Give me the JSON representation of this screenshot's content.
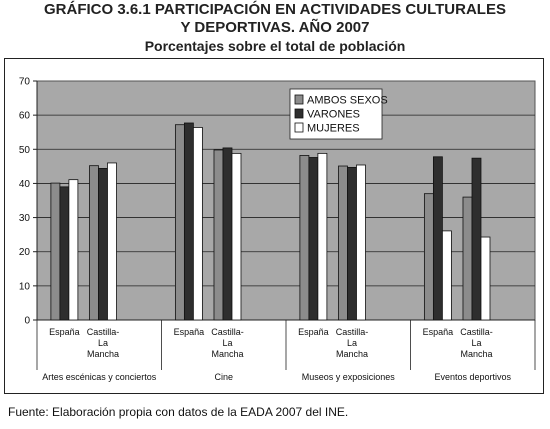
{
  "header": {
    "title_line1": "GRÁFICO 3.6.1 PARTICIPACIÓN EN ACTIVIDADES CULTURALES",
    "title_line2": "Y DEPORTIVAS. AÑO 2007",
    "subtitle": "Porcentajes sobre el total de población"
  },
  "footer": {
    "source": "Fuente: Elaboración propia con datos de la EADA 2007 del INE."
  },
  "colors": {
    "plot_background": "#a8a8a8",
    "ambos": "#8c8c8c",
    "varones": "#2e2e2e",
    "mujeres": "#ffffff"
  },
  "chart_data": {
    "type": "bar",
    "title": "GRÁFICO 3.6.1 PARTICIPACIÓN EN ACTIVIDADES CULTURALES Y DEPORTIVAS. AÑO 2007",
    "subtitle": "Porcentajes sobre el total de población",
    "ylim": [
      0,
      70
    ],
    "yticks": [
      0,
      10,
      20,
      30,
      40,
      50,
      60,
      70
    ],
    "grid": true,
    "legend_position": "top-right",
    "groups": [
      {
        "label": "Artes escénicas y conciertos",
        "categories": [
          "España",
          "Castilla-La Mancha"
        ]
      },
      {
        "label": "Cine",
        "categories": [
          "España",
          "Castilla-La Mancha"
        ]
      },
      {
        "label": "Museos y exposiciones",
        "categories": [
          "España",
          "Castilla-La Mancha"
        ]
      },
      {
        "label": "Eventos deportivos",
        "categories": [
          "España",
          "Castilla-La Mancha"
        ]
      }
    ],
    "category_label_lines": {
      "España": [
        "España"
      ],
      "Castilla-La Mancha": [
        "Castilla-",
        "La",
        "Mancha"
      ]
    },
    "series": [
      {
        "name": "AMBOS SEXOS",
        "values": [
          40.1,
          45.2,
          57.2,
          49.8,
          48.2,
          45.1,
          37.0,
          36.0
        ]
      },
      {
        "name": "VARONES",
        "values": [
          39.0,
          44.4,
          57.7,
          50.4,
          47.6,
          44.7,
          47.8,
          47.4
        ]
      },
      {
        "name": "MUJERES",
        "values": [
          41.1,
          46.0,
          56.4,
          48.8,
          48.8,
          45.4,
          26.1,
          24.3
        ]
      }
    ]
  }
}
